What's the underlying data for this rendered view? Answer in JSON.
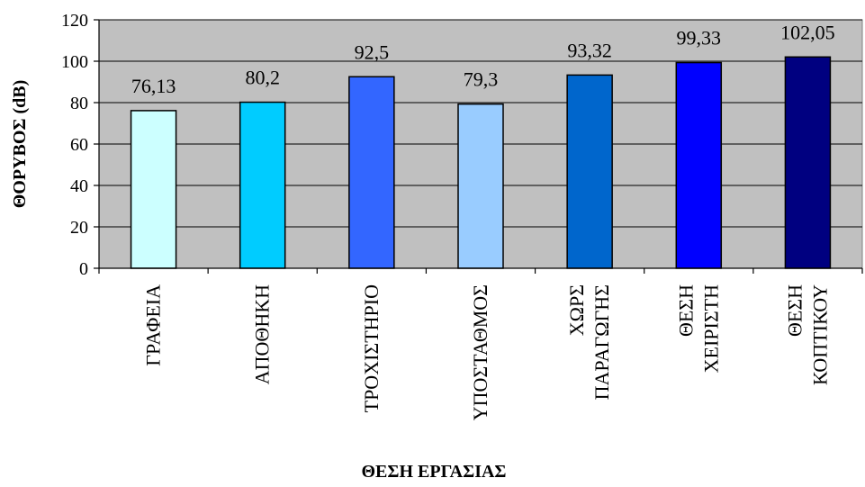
{
  "chart_data": {
    "type": "bar",
    "categories": [
      [
        "ΓΡΑΦΕΙΑ"
      ],
      [
        "ΑΠΟΘΗΚΗ"
      ],
      [
        "ΤΡΟΧΙΣΤΗΡΙΟ"
      ],
      [
        "ΥΠΟΣΤΑΘΜΟΣ"
      ],
      [
        "ΧΩΡΣ",
        "ΠΑΡΑΓΩΓΗΣ"
      ],
      [
        "ΘΕΣΗ",
        "ΧΕΙΡΙΣΤΗ"
      ],
      [
        "ΘΕΣΗ",
        "ΚΟΠΤΙΚΟΥ"
      ]
    ],
    "values": [
      76.13,
      80.2,
      92.5,
      79.3,
      93.32,
      99.33,
      102.05
    ],
    "value_labels": [
      "76,13",
      "80,2",
      "92,5",
      "79,3",
      "93,32",
      "99,33",
      "102,05"
    ],
    "bar_colors": [
      "#CCFFFF",
      "#00CCFF",
      "#3366FF",
      "#99CCFF",
      "#0066CC",
      "#0000FF",
      "#000080"
    ],
    "plot_background": "#C0C0C0",
    "xlabel": "ΘΕΣΗ ΕΡΓΑΣΙΑΣ",
    "ylabel": "ΘΟΡΥΒΟΣ (dB)",
    "ylim": [
      0,
      120
    ],
    "yticks": [
      0,
      20,
      40,
      60,
      80,
      100,
      120
    ],
    "grid": true,
    "legend": "none"
  }
}
